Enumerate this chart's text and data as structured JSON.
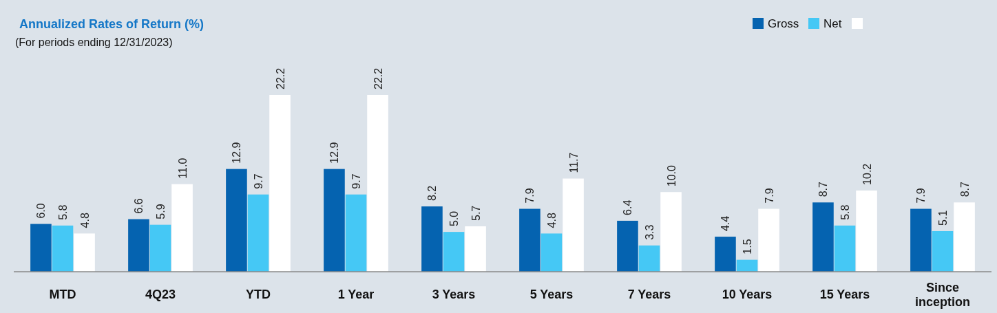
{
  "chart_data": {
    "type": "bar",
    "title": "Annualized Rates of Return (%)",
    "subtitle": "(For periods ending 12/31/2023)",
    "categories": [
      "MTD",
      "4Q23",
      "YTD",
      "1 Year",
      "3 Years",
      "5 Years",
      "7 Years",
      "10 Years",
      "15 Years",
      "Since inception"
    ],
    "series": [
      {
        "name": "Gross",
        "color": "#0563b0",
        "values": [
          6.0,
          6.6,
          12.9,
          12.9,
          8.2,
          7.9,
          6.4,
          4.4,
          8.7,
          7.9
        ],
        "value_labels": [
          "6.0",
          "6.6",
          "12.9",
          "12.9",
          "8.2",
          "7.9",
          "6.4",
          "4.4",
          "8.7",
          "7.9"
        ]
      },
      {
        "name": "Net",
        "color": "#45c8f5",
        "values": [
          5.8,
          5.9,
          9.7,
          9.7,
          5.0,
          4.8,
          3.3,
          1.5,
          5.8,
          5.1
        ],
        "value_labels": [
          "5.8",
          "5.9",
          "9.7",
          "9.7",
          "5.0",
          "4.8",
          "3.3",
          "1.5",
          "5.8",
          "5.1"
        ]
      },
      {
        "color": "#ffffff",
        "values": [
          4.8,
          11.0,
          22.2,
          22.2,
          5.7,
          11.7,
          10.0,
          7.9,
          10.2,
          8.7
        ],
        "value_labels": [
          "4.8",
          "11.0",
          "22.2",
          "22.2",
          "5.7",
          "11.7",
          "10.0",
          "7.9",
          "10.2",
          "8.7"
        ]
      }
    ],
    "legend": "top right"
  }
}
